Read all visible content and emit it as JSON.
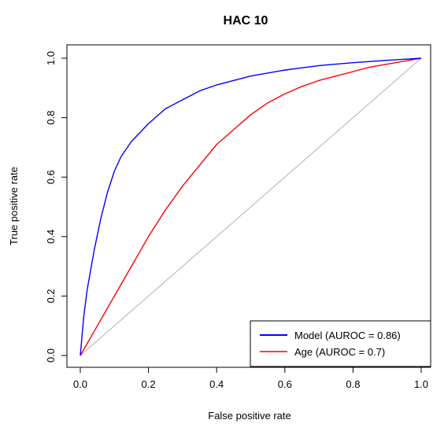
{
  "chart_data": {
    "type": "line",
    "title": "HAC 10",
    "xlabel": "False positive rate",
    "ylabel": "True positive rate",
    "xlim": [
      0.0,
      1.0
    ],
    "ylim": [
      0.0,
      1.0
    ],
    "xticks": [
      "0.0",
      "0.2",
      "0.4",
      "0.6",
      "0.8",
      "1.0"
    ],
    "yticks": [
      "0.0",
      "0.2",
      "0.4",
      "0.6",
      "0.8",
      "1.0"
    ],
    "grid": false,
    "legend_position": "bottom-right",
    "series": [
      {
        "name": "Model (AUROC = 0.86)",
        "color": "#0000ff",
        "x": [
          0.0,
          0.01,
          0.02,
          0.04,
          0.06,
          0.08,
          0.1,
          0.12,
          0.15,
          0.2,
          0.25,
          0.3,
          0.35,
          0.4,
          0.45,
          0.5,
          0.6,
          0.7,
          0.8,
          0.9,
          1.0
        ],
        "y": [
          0.0,
          0.13,
          0.22,
          0.35,
          0.46,
          0.55,
          0.62,
          0.67,
          0.72,
          0.78,
          0.83,
          0.86,
          0.89,
          0.91,
          0.925,
          0.94,
          0.96,
          0.975,
          0.985,
          0.993,
          1.0
        ]
      },
      {
        "name": "Age (AUROC = 0.7)",
        "color": "#ff0000",
        "x": [
          0.0,
          0.05,
          0.1,
          0.15,
          0.2,
          0.25,
          0.3,
          0.35,
          0.4,
          0.45,
          0.5,
          0.55,
          0.6,
          0.65,
          0.7,
          0.75,
          0.8,
          0.85,
          0.9,
          0.95,
          1.0
        ],
        "y": [
          0.0,
          0.1,
          0.2,
          0.3,
          0.4,
          0.49,
          0.57,
          0.64,
          0.71,
          0.76,
          0.81,
          0.85,
          0.88,
          0.905,
          0.925,
          0.94,
          0.955,
          0.97,
          0.98,
          0.99,
          1.0
        ]
      },
      {
        "name": "",
        "color": "#bebebe",
        "x": [
          0.0,
          1.0
        ],
        "y": [
          0.0,
          1.0
        ]
      }
    ]
  }
}
